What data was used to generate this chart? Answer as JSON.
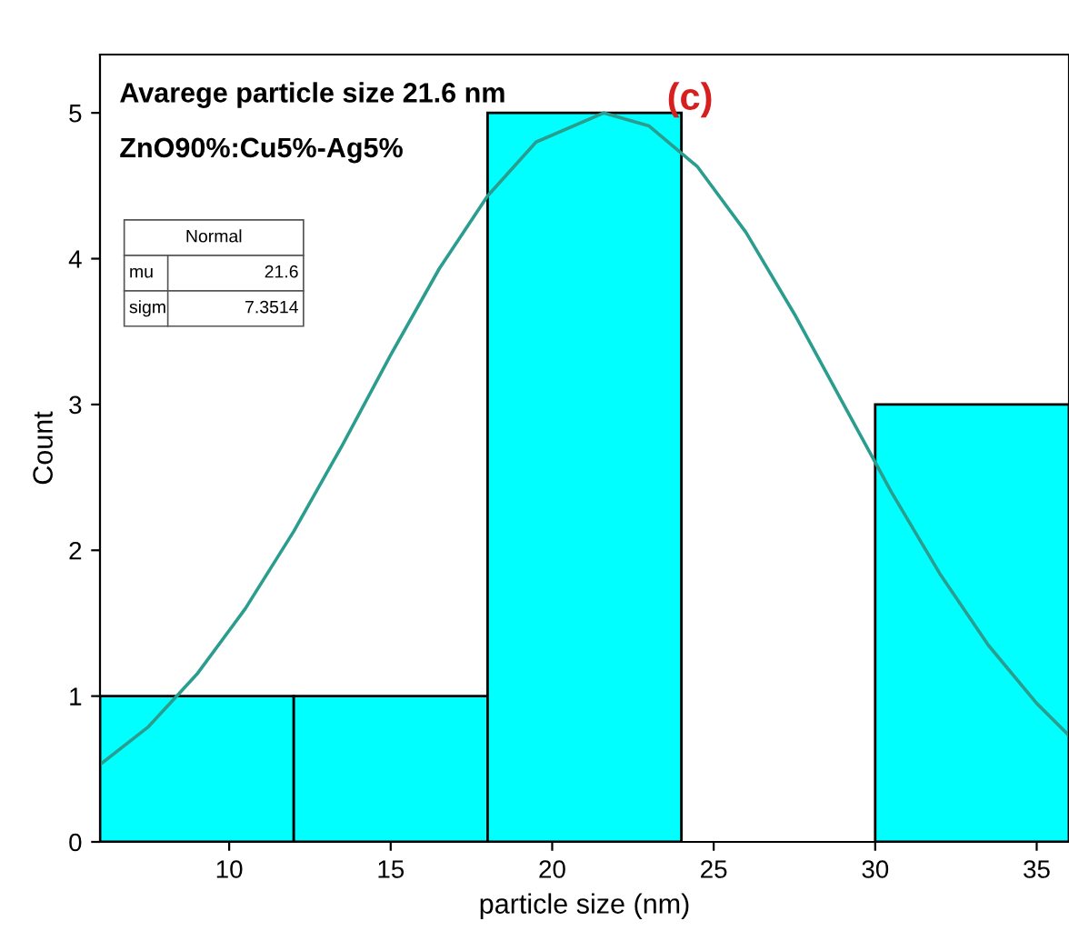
{
  "chart_data": {
    "type": "histogram",
    "xlabel": "particle size (nm)",
    "ylabel": "Count",
    "bins": [
      6,
      12,
      18,
      24,
      30,
      36
    ],
    "values": [
      1,
      1,
      5,
      0,
      3
    ],
    "color": "#00ffff",
    "series": [
      {
        "type": "line",
        "color": "#2a9d8f",
        "x": [
          6,
          7.5,
          9,
          10.5,
          12,
          13.5,
          15,
          16.5,
          18,
          19.5,
          21.6,
          23,
          24.5,
          26,
          27.5,
          29,
          30.5,
          32,
          33.5,
          35,
          36
        ],
        "values": [
          0.53,
          0.79,
          1.15,
          1.6,
          2.13,
          2.72,
          3.34,
          3.93,
          4.43,
          4.8,
          5.0,
          4.91,
          4.63,
          4.18,
          3.62,
          3.01,
          2.4,
          1.84,
          1.35,
          0.95,
          0.73
        ]
      }
    ],
    "xlim": [
      6,
      36
    ],
    "ylim": [
      0,
      5.4
    ],
    "xticks": [
      10,
      15,
      20,
      25,
      30,
      35
    ],
    "yticks": [
      0,
      1,
      2,
      3,
      4,
      5
    ],
    "grid": false,
    "annotations": [
      "Avarege particle size 21.6 nm",
      "ZnO90%:Cu5%-Ag5%",
      "(c)",
      "Normal",
      "mu",
      "21.6",
      "sigm",
      "7.3514"
    ]
  }
}
